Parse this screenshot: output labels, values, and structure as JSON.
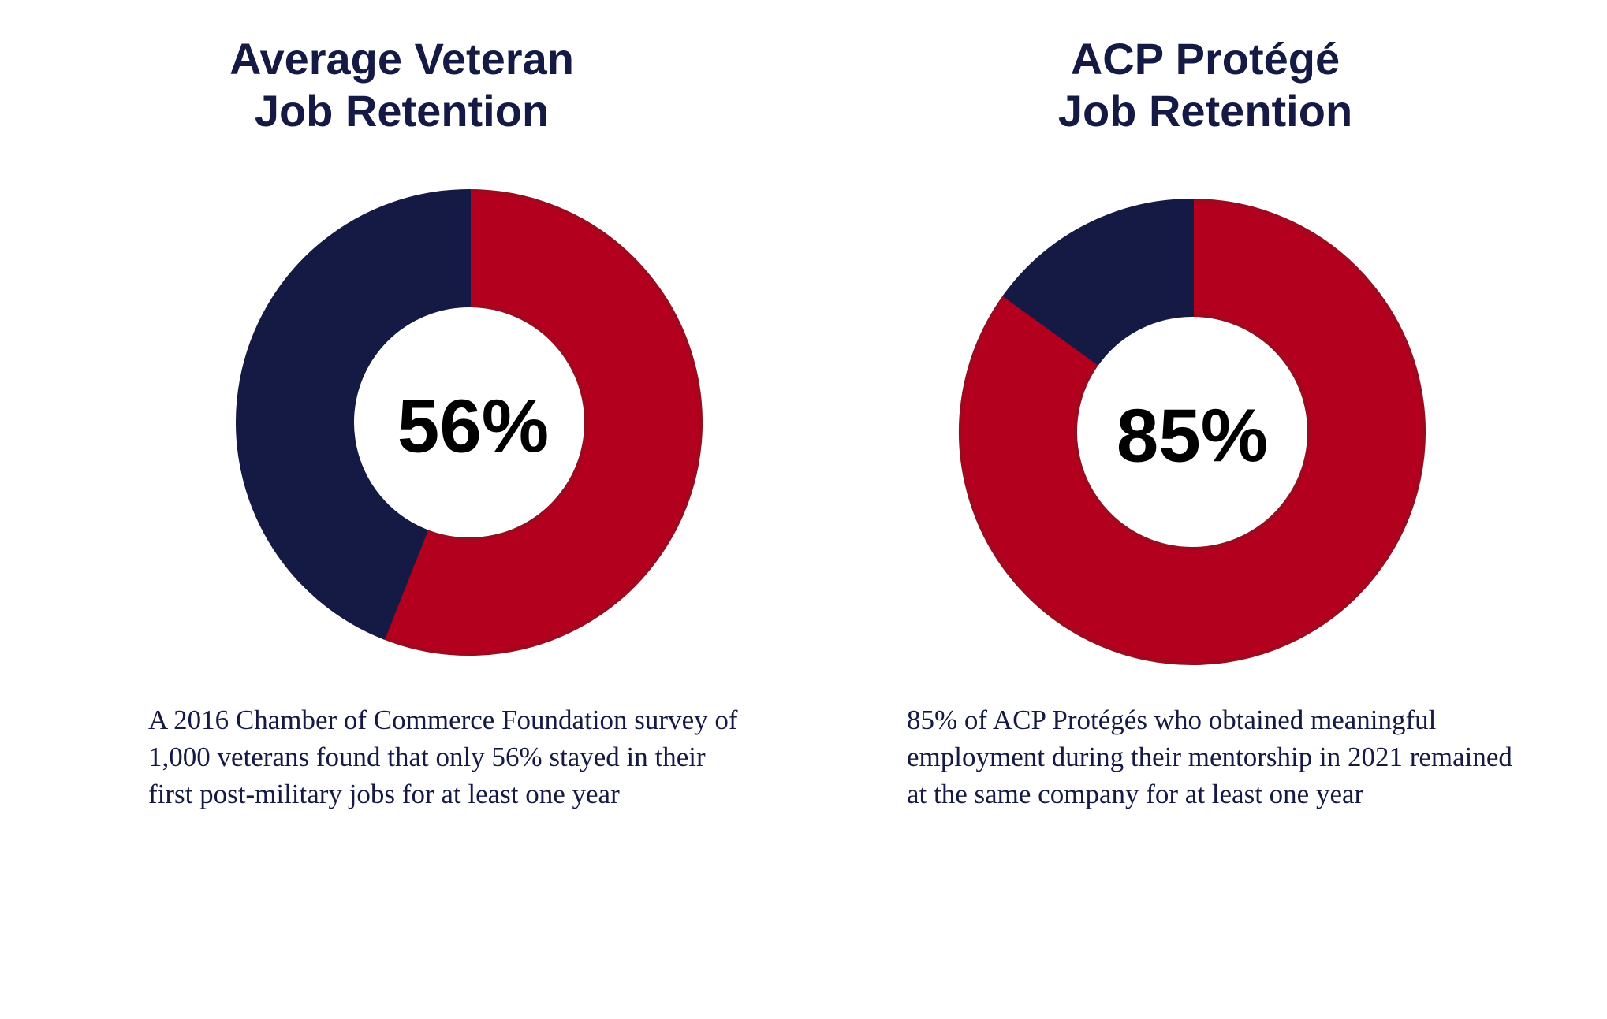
{
  "colors": {
    "navy": "#141a44",
    "red": "#b3001e",
    "red_stroke": "#9b0a1f"
  },
  "chart_data": [
    {
      "type": "pie",
      "title_lines": [
        "Average Veteran",
        "Job Retention"
      ],
      "center_label": "56%",
      "slices": [
        {
          "value": 56,
          "color": "#b3001e"
        },
        {
          "value": 44,
          "color": "#141a44"
        }
      ],
      "caption_lines": [
        "A 2016 Chamber of Commerce Foundation survey of",
        "1,000 veterans found that only 56% stayed in their",
        "first post-military jobs for at least one year"
      ]
    },
    {
      "type": "pie",
      "title_lines": [
        "ACP Protégé",
        "Job Retention"
      ],
      "center_label": "85%",
      "slices": [
        {
          "value": 85,
          "color": "#b3001e"
        },
        {
          "value": 15,
          "color": "#141a44"
        }
      ],
      "caption_lines": [
        "85% of ACP Protégés  who obtained meaningful",
        "employment during their mentorship in 2021 remained",
        "at the same company for at least one year"
      ]
    }
  ]
}
